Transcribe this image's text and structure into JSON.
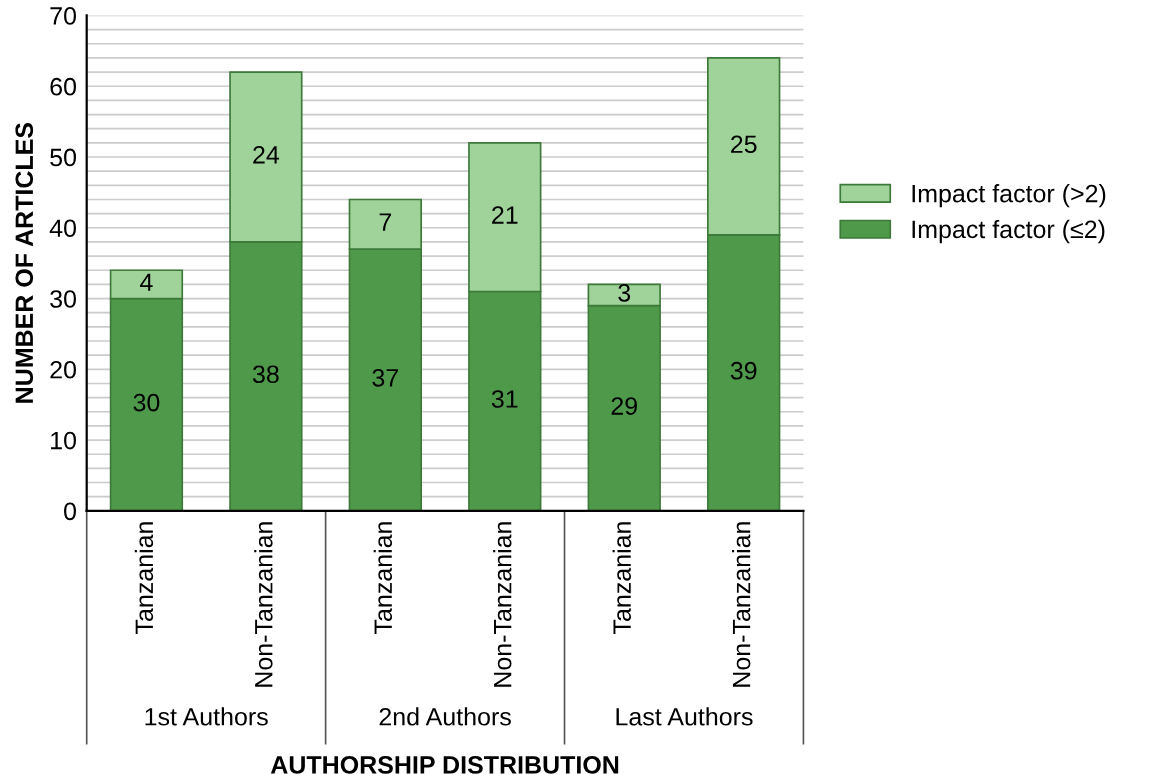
{
  "chart_data": {
    "type": "bar",
    "stacked": true,
    "xlabel": "AUTHORSHIP DISTRIBUTION",
    "ylabel": "NUMBER OF ARTICLES",
    "categories": [
      "Tanzanian",
      "Non-Tanzanian",
      "Tanzanian",
      "Non-Tanzanian",
      "Tanzanian",
      "Non-Tanzanian"
    ],
    "series": [
      {
        "name": "Impact factor (≤2)",
        "color": "#4f9a4a",
        "values": [
          30,
          38,
          37,
          31,
          29,
          39
        ]
      },
      {
        "name": "Impact factor (>2)",
        "color": "#9fd39a",
        "values": [
          4,
          24,
          7,
          21,
          3,
          25
        ]
      }
    ],
    "data_labels": true,
    "annotations": [
      "1st Authors",
      "2nd Authors",
      "Last Authors"
    ],
    "ylim": [
      0,
      70
    ],
    "yticks": [
      0,
      {
        "value": 2,
        "label": null
      },
      {
        "value": 4,
        "label": null
      },
      {
        "value": 6,
        "label": null
      },
      {
        "value": 8,
        "label": null
      },
      10,
      {
        "value": 12,
        "label": null
      },
      {
        "value": 14,
        "label": null
      },
      {
        "value": 16,
        "label": null
      },
      {
        "value": 18,
        "label": null
      },
      20,
      {
        "value": 22,
        "label": null
      },
      {
        "value": 24,
        "label": null
      },
      {
        "value": 26,
        "label": null
      },
      {
        "value": 28,
        "label": null
      },
      30,
      {
        "value": 32,
        "label": null
      },
      {
        "value": 34,
        "label": null
      },
      {
        "value": 36,
        "label": null
      },
      {
        "value": 38,
        "label": null
      },
      40,
      {
        "value": 42,
        "label": null
      },
      {
        "value": 44,
        "label": null
      },
      {
        "value": 46,
        "label": null
      },
      {
        "value": 48,
        "label": null
      },
      50,
      {
        "value": 52,
        "label": null
      },
      {
        "value": 54,
        "label": null
      },
      {
        "value": 56,
        "label": null
      },
      {
        "value": 58,
        "label": null
      },
      60,
      {
        "value": 62,
        "label": null
      },
      {
        "value": 64,
        "label": null
      },
      {
        "value": 66,
        "label": null
      },
      {
        "value": 68,
        "label": null
      },
      70
    ],
    "grid": "y",
    "legend": "right"
  }
}
